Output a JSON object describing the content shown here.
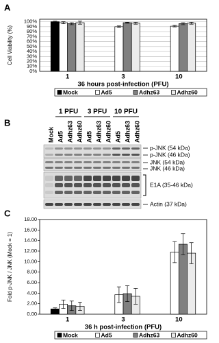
{
  "chart_data": [
    {
      "type": "bar",
      "panel": "A",
      "ylabel": "Cell Viability (%)",
      "xlabel": "36 hours post-infection (PFU)",
      "categories": [
        "1",
        "3",
        "10"
      ],
      "series": [
        {
          "name": "Mock",
          "color": "#000000",
          "values": [
            100,
            null,
            null
          ],
          "errors": [
            1,
            null,
            null
          ]
        },
        {
          "name": "Ad5",
          "color": "#ffffff",
          "values": [
            98,
            90,
            91
          ],
          "errors": [
            2,
            1.5,
            1.5
          ]
        },
        {
          "name": "Adhz63",
          "color": "#808080",
          "values": [
            96,
            98,
            96
          ],
          "errors": [
            2,
            1,
            2
          ]
        },
        {
          "name": "Adhz60",
          "color": "#ebebeb",
          "values": [
            98,
            97,
            97
          ],
          "errors": [
            3,
            2,
            2
          ]
        }
      ],
      "ylim": [
        0,
        105
      ],
      "yticks": [
        {
          "value": 0,
          "label": "0%"
        },
        {
          "value": 10,
          "label": "10%"
        },
        {
          "value": 20,
          "label": "20%"
        },
        {
          "value": 30,
          "label": "30%"
        },
        {
          "value": 40,
          "label": "40%"
        },
        {
          "value": 50,
          "label": "50%"
        },
        {
          "value": 60,
          "label": "60%"
        },
        {
          "value": 70,
          "label": "70%"
        },
        {
          "value": 80,
          "label": "80%"
        },
        {
          "value": 90,
          "label": "90%"
        },
        {
          "value": 100,
          "label": "100%"
        }
      ],
      "grid": true,
      "legend": "bottom"
    },
    {
      "type": "bar",
      "panel": "C",
      "ylabel": "Fold p-JNK / JNK (Mock = 1)",
      "xlabel": "36 h post-infection (PFU)",
      "categories": [
        "1",
        "3",
        "10"
      ],
      "series": [
        {
          "name": "Mock",
          "color": "#000000",
          "values": [
            1.0,
            null,
            null
          ],
          "errors": [
            0.2,
            null,
            null
          ]
        },
        {
          "name": "Ad5",
          "color": "#ffffff",
          "values": [
            1.9,
            3.7,
            11.8
          ],
          "errors": [
            0.8,
            1.5,
            2.0
          ]
        },
        {
          "name": "Adhz63",
          "color": "#808080",
          "values": [
            1.6,
            3.9,
            13.3
          ],
          "errors": [
            0.9,
            1.5,
            2.0
          ]
        },
        {
          "name": "Adhz60",
          "color": "#ebebeb",
          "values": [
            1.5,
            3.4,
            11.6
          ],
          "errors": [
            0.8,
            1.5,
            2.0
          ]
        }
      ],
      "ylim": [
        0,
        18
      ],
      "yticks": [
        {
          "value": 0,
          "label": "0.00"
        },
        {
          "value": 2,
          "label": "2.00"
        },
        {
          "value": 4,
          "label": "4.00"
        },
        {
          "value": 6,
          "label": "6.00"
        },
        {
          "value": 8,
          "label": "8.00"
        },
        {
          "value": 10,
          "label": "10.00"
        },
        {
          "value": 12,
          "label": "12.00"
        },
        {
          "value": 14,
          "label": "14.00"
        },
        {
          "value": 16,
          "label": "16.00"
        },
        {
          "value": 18,
          "label": "18.00"
        }
      ],
      "grid": false,
      "legend": "bottom"
    }
  ],
  "blot": {
    "panel": "B",
    "groups": [
      "1 PFU",
      "3 PFU",
      "10 PFU"
    ],
    "lanes": [
      "Mock",
      "Ad5",
      "Adhz63",
      "Adhz60",
      "Ad5",
      "Adhz63",
      "Adhz60",
      "Ad5",
      "Adhz63",
      "Adhz60"
    ],
    "bands": [
      "p-JNK (54 kDa)",
      "p-JNK (46 kDa)",
      "JNK (54 kDa)",
      "JNK (46 kDa)",
      "E1A (35-46 kDa)",
      "Actin (37 kDa)"
    ]
  }
}
